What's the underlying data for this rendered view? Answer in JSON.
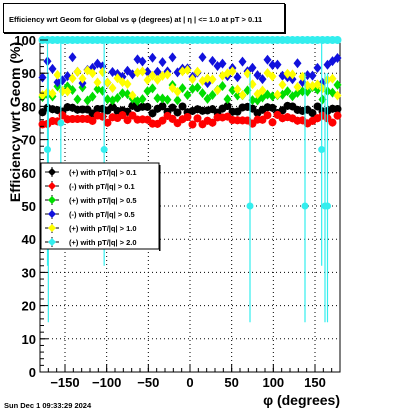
{
  "chart_data": {
    "type": "scatter",
    "title": "Efficiency wrt Geom for Global vs φ (degrees) at | η | <= 1.0 at pT > 0.11",
    "xlabel": "φ (degrees)",
    "ylabel": "Efficiency wrt Geom (%)",
    "xlim": [
      -180,
      180
    ],
    "ylim": [
      0,
      100
    ],
    "xticks": [
      -150,
      -100,
      -50,
      0,
      50,
      100,
      150
    ],
    "yticks": [
      0,
      10,
      20,
      30,
      40,
      50,
      60,
      70,
      80,
      90,
      100
    ],
    "grid": true,
    "legend_position": "left-middle",
    "series": [
      {
        "name": "(+) with pT/|q| > 0.1",
        "color": "#000000",
        "marker": "circle",
        "y_mean": 79,
        "y_spread": 1.2,
        "x": [
          -177,
          -171,
          -165,
          -159,
          -153,
          -147,
          -141,
          -135,
          -129,
          -123,
          -117,
          -111,
          -105,
          -99,
          -93,
          -87,
          -81,
          -75,
          -69,
          -63,
          -57,
          -51,
          -45,
          -39,
          -33,
          -27,
          -21,
          -15,
          -9,
          -3,
          3,
          9,
          15,
          21,
          27,
          33,
          39,
          45,
          51,
          57,
          63,
          69,
          75,
          81,
          87,
          93,
          99,
          105,
          111,
          117,
          123,
          129,
          135,
          141,
          147,
          153,
          159,
          165,
          171,
          177
        ]
      },
      {
        "name": "(-) with pT/|q| > 0.1",
        "color": "#ff0000",
        "marker": "circle",
        "y_mean": 76,
        "y_spread": 1.5,
        "x": [
          -177,
          -171,
          -165,
          -159,
          -153,
          -147,
          -141,
          -135,
          -129,
          -123,
          -117,
          -111,
          -105,
          -99,
          -93,
          -87,
          -81,
          -75,
          -69,
          -63,
          -57,
          -51,
          -45,
          -39,
          -33,
          -27,
          -21,
          -15,
          -9,
          -3,
          3,
          9,
          15,
          21,
          27,
          33,
          39,
          45,
          51,
          57,
          63,
          69,
          75,
          81,
          87,
          93,
          99,
          105,
          111,
          117,
          123,
          129,
          135,
          141,
          147,
          153,
          159,
          165,
          171,
          177
        ]
      },
      {
        "name": "(+) with pT/|q| > 0.5",
        "color": "#00dd00",
        "marker": "diamond",
        "y_mean": 84,
        "y_spread": 2.5,
        "x": [
          -177,
          -171,
          -165,
          -159,
          -153,
          -147,
          -141,
          -135,
          -129,
          -123,
          -117,
          -111,
          -105,
          -99,
          -93,
          -87,
          -81,
          -75,
          -69,
          -63,
          -57,
          -51,
          -45,
          -39,
          -33,
          -27,
          -21,
          -15,
          -9,
          -3,
          3,
          9,
          15,
          21,
          27,
          33,
          39,
          45,
          51,
          57,
          63,
          69,
          75,
          81,
          87,
          93,
          99,
          105,
          111,
          117,
          123,
          129,
          135,
          141,
          147,
          153,
          159,
          165,
          171,
          177
        ]
      },
      {
        "name": "(-) with pT/|q| > 0.5",
        "color": "#1111dd",
        "marker": "diamond",
        "y_mean": 91,
        "y_spread": 4,
        "x": [
          -177,
          -171,
          -165,
          -159,
          -153,
          -147,
          -141,
          -135,
          -129,
          -123,
          -117,
          -111,
          -105,
          -99,
          -93,
          -87,
          -81,
          -75,
          -69,
          -63,
          -57,
          -51,
          -45,
          -39,
          -33,
          -27,
          -21,
          -15,
          -9,
          -3,
          3,
          9,
          15,
          21,
          27,
          33,
          39,
          45,
          51,
          57,
          63,
          69,
          75,
          81,
          87,
          93,
          99,
          105,
          111,
          117,
          123,
          129,
          135,
          141,
          147,
          153,
          159,
          165,
          171,
          177
        ]
      },
      {
        "name": "(+) with pT/|q| > 1.0",
        "color": "#ffff00",
        "marker": "diamond",
        "y_mean": 87,
        "y_spread": 4,
        "x": [
          -177,
          -171,
          -165,
          -159,
          -153,
          -147,
          -141,
          -135,
          -129,
          -123,
          -117,
          -111,
          -105,
          -99,
          -93,
          -87,
          -81,
          -75,
          -69,
          -63,
          -57,
          -51,
          -45,
          -39,
          -33,
          -27,
          -21,
          -15,
          -9,
          -3,
          3,
          9,
          15,
          21,
          27,
          33,
          39,
          45,
          51,
          57,
          63,
          69,
          75,
          81,
          87,
          93,
          99,
          105,
          111,
          117,
          123,
          129,
          135,
          141,
          147,
          153,
          159,
          165,
          171,
          177
        ]
      },
      {
        "name": "(+) with pT/|q| > 2.0",
        "color": "#33eeee",
        "marker": "circle",
        "y_mean": 100,
        "y_spread": 0,
        "x": [
          -177,
          -171,
          -165,
          -159,
          -153,
          -147,
          -141,
          -135,
          -129,
          -123,
          -117,
          -111,
          -105,
          -99,
          -93,
          -87,
          -81,
          -75,
          -69,
          -63,
          -57,
          -51,
          -45,
          -39,
          -33,
          -27,
          -21,
          -15,
          -9,
          -3,
          3,
          9,
          15,
          21,
          27,
          33,
          39,
          45,
          51,
          57,
          63,
          69,
          75,
          81,
          87,
          93,
          99,
          105,
          111,
          117,
          123,
          129,
          135,
          141,
          147,
          153,
          159,
          165,
          171,
          177
        ]
      }
    ],
    "outliers": [
      {
        "series": 5,
        "x": -170,
        "y": 50
      },
      {
        "series": 5,
        "x": 72,
        "y": 50
      },
      {
        "series": 5,
        "x": 138,
        "y": 50
      },
      {
        "series": 5,
        "x": 162,
        "y": 50
      },
      {
        "series": 5,
        "x": -103,
        "y": 67
      },
      {
        "series": 5,
        "x": -155,
        "y": 75
      },
      {
        "series": 5,
        "x": 158,
        "y": 67
      },
      {
        "series": 5,
        "x": -171,
        "y": 67
      },
      {
        "series": 5,
        "x": 165,
        "y": 50
      }
    ]
  },
  "footer": {
    "timestamp": "Sun Dec  1 09:33:29 2024"
  }
}
